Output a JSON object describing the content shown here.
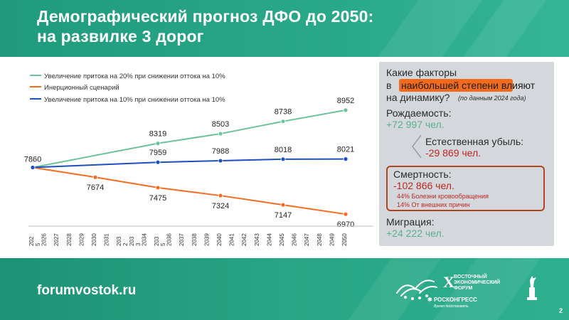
{
  "header": {
    "title_line1": "Демографический прогноз ДФО до 2050:",
    "title_line2": "на развилке 3 дорог"
  },
  "colors": {
    "header_bg": "#2aa98a",
    "series_green": "#6cc39a",
    "series_orange": "#f36c21",
    "series_blue": "#1f4fbf",
    "panel_bg": "#d4d7db",
    "highlight": "#f26a1b",
    "mortality_border": "#b0441a",
    "positive_text": "#59b08a",
    "negative_text": "#c0261f"
  },
  "chart_data": {
    "type": "line",
    "x": [
      "2025",
      "2029",
      "2034",
      "2038",
      "2043",
      "2048"
    ],
    "x_tick_labels": [
      "202\n5",
      "2026",
      "2027",
      "2028",
      "2029",
      "2030",
      "2031",
      "203\n2",
      "203\n3",
      "2034",
      "203\n5",
      "2036",
      "2037",
      "2038",
      "2039",
      "2040",
      "2041",
      "2042",
      "2043",
      "2044",
      "2045",
      "2046",
      "2047",
      "2048",
      "2049",
      "2050"
    ],
    "series": [
      {
        "name": "Увеличение притока на 20% при снижении оттока на 10%",
        "color": "#6cc39a",
        "values": [
          7860,
          null,
          8319,
          8503,
          8738,
          8952
        ]
      },
      {
        "name": "Инерционный  сценарий",
        "color": "#f36c21",
        "values": [
          7860,
          7674,
          7475,
          7324,
          7147,
          6970
        ]
      },
      {
        "name": "Увеличение притока на 10% при снижении оттока на 10%",
        "color": "#1f4fbf",
        "values": [
          7860,
          null,
          7959,
          7988,
          8018,
          8021
        ]
      }
    ],
    "data_labels": [
      {
        "series": 0,
        "x": "2034",
        "y": 8319
      },
      {
        "series": 0,
        "x": "2038",
        "y": 8503
      },
      {
        "series": 0,
        "x": "2043",
        "y": 8738
      },
      {
        "series": 0,
        "x": "2048",
        "y": 8952
      },
      {
        "series": 1,
        "x": "2025",
        "y": 7860
      },
      {
        "series": 1,
        "x": "2029",
        "y": 7674
      },
      {
        "series": 1,
        "x": "2034",
        "y": 7475
      },
      {
        "series": 1,
        "x": "2038",
        "y": 7324
      },
      {
        "series": 1,
        "x": "2043",
        "y": 7147
      },
      {
        "series": 1,
        "x": "2048",
        "y": 6970
      },
      {
        "series": 2,
        "x": "2034",
        "y": 7959
      },
      {
        "series": 2,
        "x": "2038",
        "y": 7988
      },
      {
        "series": 2,
        "x": "2043",
        "y": 8018
      },
      {
        "series": 2,
        "x": "2048",
        "y": 8021
      }
    ],
    "ylim": [
      6850,
      9250
    ],
    "xlabel": "",
    "ylabel": "",
    "title": "",
    "grid": false,
    "legend_position": "top-left"
  },
  "side_panel": {
    "question_line1": "Какие факторы",
    "question_line2_prefix": "в",
    "question_highlight": "наибольшей степени влияют",
    "question_line3": "на динамику?",
    "question_note": "(по данным 2024 года)",
    "birth_label": "Рождаемость:",
    "birth_value": "+72 997 чел.",
    "natural_loss_label": "Естественная  убыль:",
    "natural_loss_value": "-29 869 чел.",
    "mortality_label": "Смертность:",
    "mortality_value": "-102 866 чел.",
    "mortality_cause1": "44% Болезни кровообращения",
    "mortality_cause2": "14% От внешних  причин",
    "migration_label": "Миграция:",
    "migration_value": "+24 222 чел."
  },
  "footer": {
    "url": "forumvostok.ru",
    "forum_numeral": "X",
    "forum_line1": "ВОСТОЧНЫЙ",
    "forum_line2": "ЭКОНОМИЧЕСКИЙ",
    "forum_line3": "ФОРУМ",
    "roscongress": "РОСКОНГРЕСС",
    "roscongress_tagline": "Время действовать",
    "page_number": "2"
  }
}
